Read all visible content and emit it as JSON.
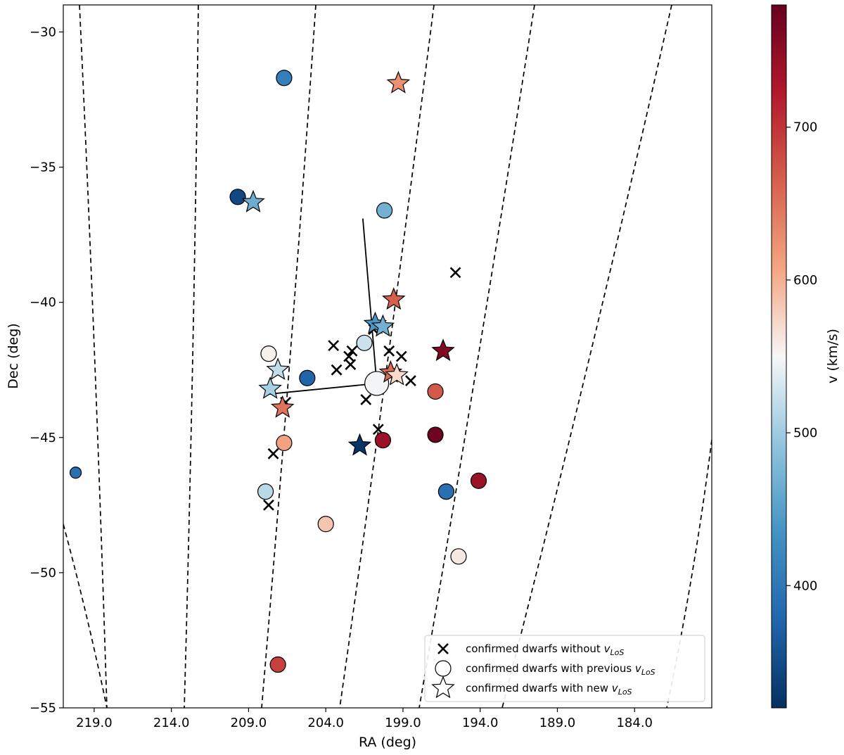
{
  "chart_data": {
    "type": "scatter",
    "title": "",
    "xlabel": "RA (deg)",
    "ylabel": "Dec (deg)",
    "xlim": [
      221.0,
      179.0
    ],
    "ylim": [
      -55.0,
      -29.0
    ],
    "x_ticks": [
      219.0,
      214.0,
      209.0,
      204.0,
      199.0,
      194.0,
      189.0,
      184.0
    ],
    "x_tick_labels": [
      "219.0",
      "214.0",
      "209.0",
      "204.0",
      "199.0",
      "194.0",
      "189.0",
      "184.0"
    ],
    "y_ticks": [
      -30,
      -35,
      -40,
      -45,
      -50,
      -55
    ],
    "y_tick_labels": [
      "−30",
      "−35",
      "−40",
      "−45",
      "−50",
      "−55"
    ],
    "grid": false,
    "legend_position": "bottom-right",
    "legend": [
      {
        "marker": "x",
        "label": "confirmed dwarfs without ",
        "sub": "LoS"
      },
      {
        "marker": "circle",
        "label": "confirmed dwarfs with previous ",
        "sub": "LoS"
      },
      {
        "marker": "star",
        "label": "confirmed dwarfs with new ",
        "sub": "LoS"
      }
    ],
    "colorbar": {
      "label": "v (km/s)",
      "range": [
        320,
        780
      ],
      "ticks": [
        400,
        500,
        600,
        700
      ],
      "tick_labels": [
        "400",
        "500",
        "600",
        "700"
      ],
      "colormap": "RdBu_r"
    },
    "center": {
      "ra": 200.7,
      "dec": -43.0,
      "v": 547
    },
    "arms": [
      [
        [
          200.7,
          -43.0
        ],
        [
          201.6,
          -36.9
        ]
      ],
      [
        [
          200.7,
          -43.0
        ],
        [
          207.8,
          -43.4
        ]
      ]
    ],
    "meridians": [
      [
        [
          222.5,
          -31.0
        ],
        [
          219.0,
          -31.0
        ],
        [
          215.8,
          -55.0
        ]
      ],
      [
        [
          215.1,
          -29.0
        ],
        [
          213.8,
          -55.0
        ]
      ],
      [
        [
          206.4,
          -29.0
        ],
        [
          204.2,
          -55.0
        ]
      ],
      [
        [
          198.5,
          -29.0
        ],
        [
          199.1,
          -55.0
        ]
      ]
    ],
    "meridian_curves": [
      {
        "x": [
          218.9,
          219.0
        ],
        "y": [
          -29.0,
          -55.0
        ]
      },
      {
        "x": [
          213.8,
          214.0
        ],
        "y": [
          -29.0,
          -55.0
        ]
      },
      {
        "x": [
          208.8,
          209.0
        ],
        "y": [
          -29.0,
          -55.0
        ]
      },
      {
        "x": [
          203.7,
          204.0
        ],
        "y": [
          -29.0,
          -55.0
        ]
      },
      {
        "x": [
          198.6,
          199.0
        ],
        "y": [
          -29.0,
          -55.0
        ]
      },
      {
        "x": [
          193.5,
          194.0
        ],
        "y": [
          -29.0,
          -55.0
        ]
      },
      {
        "x": [
          188.4,
          189.0
        ],
        "y": [
          -29.0,
          -55.0
        ]
      }
    ],
    "no_vlos": [
      {
        "ra": 195.6,
        "dec": -38.9
      },
      {
        "ra": 203.5,
        "dec": -41.6
      },
      {
        "ra": 202.3,
        "dec": -41.8
      },
      {
        "ra": 202.5,
        "dec": -42.0
      },
      {
        "ra": 202.4,
        "dec": -42.3
      },
      {
        "ra": 203.3,
        "dec": -42.5
      },
      {
        "ra": 200.9,
        "dec": -41.0
      },
      {
        "ra": 199.9,
        "dec": -41.8
      },
      {
        "ra": 199.1,
        "dec": -42.0
      },
      {
        "ra": 198.5,
        "dec": -42.9
      },
      {
        "ra": 201.4,
        "dec": -43.6
      },
      {
        "ra": 206.6,
        "dec": -43.7
      },
      {
        "ra": 200.6,
        "dec": -44.7
      },
      {
        "ra": 207.4,
        "dec": -45.6
      },
      {
        "ra": 207.7,
        "dec": -47.5
      }
    ],
    "previous_vlos": [
      {
        "ra": 206.7,
        "dec": -31.7,
        "v": 410,
        "size": 11
      },
      {
        "ra": 209.7,
        "dec": -36.1,
        "v": 345,
        "size": 11
      },
      {
        "ra": 200.2,
        "dec": -36.6,
        "v": 470,
        "size": 11
      },
      {
        "ra": 201.5,
        "dec": -41.5,
        "v": 525,
        "size": 11
      },
      {
        "ra": 207.7,
        "dec": -41.9,
        "v": 555,
        "size": 11
      },
      {
        "ra": 205.2,
        "dec": -42.8,
        "v": 375,
        "size": 11
      },
      {
        "ra": 200.7,
        "dec": -43.0,
        "v": 547,
        "size": 17
      },
      {
        "ra": 196.9,
        "dec": -43.3,
        "v": 670,
        "size": 11
      },
      {
        "ra": 196.9,
        "dec": -44.9,
        "v": 775,
        "size": 11
      },
      {
        "ra": 200.3,
        "dec": -45.1,
        "v": 740,
        "size": 11
      },
      {
        "ra": 206.7,
        "dec": -45.2,
        "v": 610,
        "size": 11
      },
      {
        "ra": 207.9,
        "dec": -47.0,
        "v": 515,
        "size": 11
      },
      {
        "ra": 196.2,
        "dec": -47.0,
        "v": 390,
        "size": 11
      },
      {
        "ra": 194.1,
        "dec": -46.6,
        "v": 740,
        "size": 11
      },
      {
        "ra": 204.0,
        "dec": -48.2,
        "v": 585,
        "size": 11
      },
      {
        "ra": 195.4,
        "dec": -49.4,
        "v": 560,
        "size": 11
      },
      {
        "ra": 220.2,
        "dec": -46.3,
        "v": 390,
        "size": 8
      },
      {
        "ra": 207.1,
        "dec": -53.4,
        "v": 690,
        "size": 11
      }
    ],
    "new_vlos": [
      {
        "ra": 199.3,
        "dec": -31.9,
        "v": 625
      },
      {
        "ra": 208.7,
        "dec": -36.3,
        "v": 465
      },
      {
        "ra": 199.6,
        "dec": -39.9,
        "v": 665
      },
      {
        "ra": 200.8,
        "dec": -40.8,
        "v": 440
      },
      {
        "ra": 200.3,
        "dec": -40.9,
        "v": 470
      },
      {
        "ra": 196.4,
        "dec": -41.8,
        "v": 760
      },
      {
        "ra": 199.8,
        "dec": -42.6,
        "v": 655
      },
      {
        "ra": 199.4,
        "dec": -42.7,
        "v": 570
      },
      {
        "ra": 207.1,
        "dec": -42.5,
        "v": 520
      },
      {
        "ra": 207.6,
        "dec": -43.2,
        "v": 505
      },
      {
        "ra": 206.8,
        "dec": -43.9,
        "v": 650
      },
      {
        "ra": 201.8,
        "dec": -45.3,
        "v": 325
      }
    ]
  }
}
